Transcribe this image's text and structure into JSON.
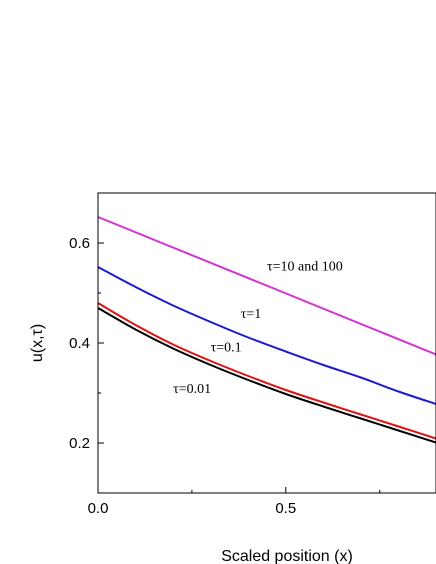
{
  "chart_data": {
    "type": "line",
    "xlabel": "Scaled position (x)",
    "ylabel": "u(x,τ)",
    "xlim": [
      0,
      0.9
    ],
    "ylim": [
      0.1,
      0.7
    ],
    "x_ticks": [
      {
        "value": 0.0,
        "label": "0.0"
      },
      {
        "value": 0.5,
        "label": "0.5"
      }
    ],
    "y_ticks": [
      {
        "value": 0.2,
        "label": "0.2"
      },
      {
        "value": 0.4,
        "label": "0.4"
      },
      {
        "value": 0.6,
        "label": "0.6"
      }
    ],
    "grid": false,
    "legend": "none",
    "series": [
      {
        "label": "τ=10 and 100",
        "color": "#d633d6",
        "x": [
          0,
          0.9
        ],
        "values": [
          0.652,
          0.377
        ]
      },
      {
        "label": "τ=1",
        "color": "#1a1ad6",
        "x": [
          0,
          0.1,
          0.2,
          0.3,
          0.4,
          0.5,
          0.6,
          0.7,
          0.8,
          0.9
        ],
        "values": [
          0.552,
          0.512,
          0.475,
          0.442,
          0.411,
          0.383,
          0.356,
          0.331,
          0.303,
          0.278
        ]
      },
      {
        "label": "τ=0.1",
        "color": "#e01010",
        "x": [
          0,
          0.1,
          0.2,
          0.3,
          0.4,
          0.5,
          0.6,
          0.7,
          0.8,
          0.9
        ],
        "values": [
          0.48,
          0.436,
          0.397,
          0.364,
          0.334,
          0.306,
          0.281,
          0.257,
          0.233,
          0.209
        ]
      },
      {
        "label": "τ=0.01",
        "color": "#000000",
        "x": [
          0,
          0.1,
          0.2,
          0.3,
          0.4,
          0.5,
          0.6,
          0.7,
          0.8,
          0.9
        ],
        "values": [
          0.47,
          0.427,
          0.389,
          0.356,
          0.326,
          0.298,
          0.273,
          0.249,
          0.225,
          0.201
        ]
      }
    ],
    "annotations": [
      {
        "text": "τ=10 and 100",
        "x": 0.45,
        "y": 0.545
      },
      {
        "text": "τ=1",
        "x": 0.38,
        "y": 0.45
      },
      {
        "text": "τ=0.1",
        "x": 0.3,
        "y": 0.383
      },
      {
        "text": "τ=0.01",
        "x": 0.2,
        "y": 0.3
      }
    ]
  }
}
